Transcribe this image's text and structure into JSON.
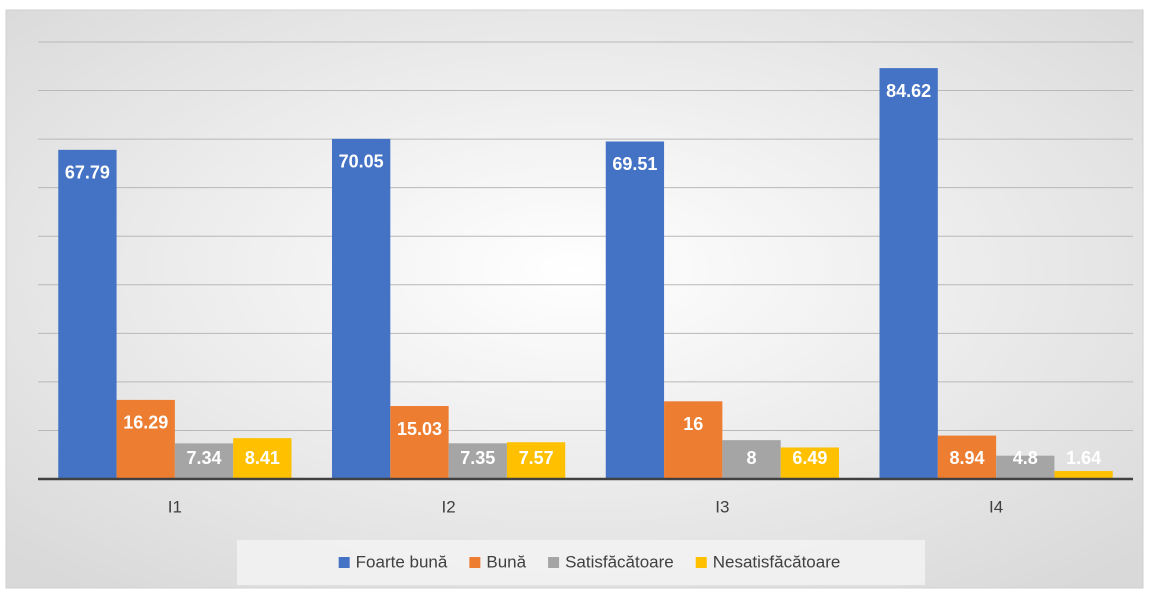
{
  "chart_data": {
    "type": "bar",
    "categories": [
      "I1",
      "I2",
      "I3",
      "I4"
    ],
    "series": [
      {
        "name": "Foarte bună",
        "color": "#4472c4",
        "values": [
          67.79,
          70.05,
          69.51,
          84.62
        ]
      },
      {
        "name": "Bună",
        "color": "#ed7d31",
        "values": [
          16.29,
          15.03,
          16,
          8.94
        ]
      },
      {
        "name": "Satisfăcătoare",
        "color": "#a5a5a5",
        "values": [
          7.34,
          7.35,
          8,
          4.8
        ]
      },
      {
        "name": "Nesatisfăcătoare",
        "color": "#ffc000",
        "values": [
          8.41,
          7.57,
          6.49,
          1.64
        ]
      }
    ],
    "ylim": [
      0,
      90
    ],
    "yticks": [
      0,
      10,
      20,
      30,
      40,
      50,
      60,
      70,
      80,
      90
    ],
    "grid": true,
    "legend": "bottom"
  }
}
